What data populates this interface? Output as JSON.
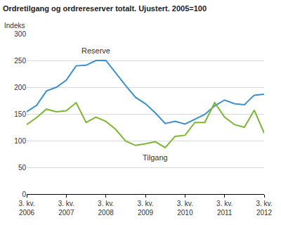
{
  "chart_data": {
    "type": "line",
    "title": "Ordretilgang og ordrereserver totalt. Ujustert. 2005=100",
    "ylabel": "Indeks",
    "categories": [
      "3. kv.\n2006",
      null,
      null,
      null,
      "3. kv.\n2007",
      null,
      null,
      null,
      "3. kv.\n2008",
      null,
      null,
      null,
      "3. kv.\n2009",
      null,
      null,
      null,
      "3. kv.\n2010",
      null,
      null,
      null,
      "3. kv.\n2011",
      null,
      null,
      null,
      "3. kv.\n2012"
    ],
    "series": [
      {
        "name": "Reserve",
        "color": "#3b8fd0",
        "values": [
          154,
          166,
          193,
          200,
          213,
          240,
          241,
          250,
          250,
          226,
          203,
          181,
          169,
          152,
          132,
          136,
          131,
          140,
          149,
          165,
          176,
          169,
          167,
          185,
          187
        ]
      },
      {
        "name": "Tilgang",
        "color": "#7db632",
        "values": [
          130,
          143,
          159,
          154,
          156,
          171,
          134,
          144,
          136,
          121,
          99,
          91,
          94,
          98,
          87,
          108,
          110,
          134,
          134,
          171,
          144,
          130,
          125,
          157,
          114
        ]
      }
    ],
    "ylim": [
      0,
      300
    ],
    "yticks": [
      0,
      50,
      100,
      150,
      200,
      250,
      300
    ],
    "grid": true
  }
}
